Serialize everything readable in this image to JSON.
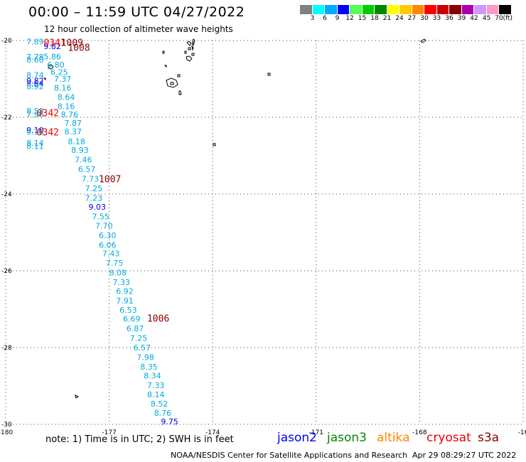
{
  "title": "00:00 – 11:59 UTC 04/27/2022",
  "subtitle": "12 hour collection of altimeter wave heights",
  "scale": {
    "unit": "(ft)",
    "bins": [
      {
        "color": "#808080",
        "label": "3"
      },
      {
        "color": "#00ffff",
        "label": "6"
      },
      {
        "color": "#00aaff",
        "label": "9"
      },
      {
        "color": "#0000ff",
        "label": "12"
      },
      {
        "color": "#55ff55",
        "label": "15"
      },
      {
        "color": "#00cc00",
        "label": "18"
      },
      {
        "color": "#008800",
        "label": "21"
      },
      {
        "color": "#ffff00",
        "label": "24"
      },
      {
        "color": "#ffcc00",
        "label": "27"
      },
      {
        "color": "#ff8800",
        "label": "30"
      },
      {
        "color": "#ff0000",
        "label": "33"
      },
      {
        "color": "#cc0000",
        "label": "36"
      },
      {
        "color": "#880000",
        "label": "39"
      },
      {
        "color": "#aa00aa",
        "label": "42"
      },
      {
        "color": "#cc99ff",
        "label": "45"
      },
      {
        "color": "#ff99cc",
        "label": "70"
      },
      {
        "color": "#000000",
        "label": ""
      }
    ]
  },
  "axes": {
    "lon_labels": [
      "-180",
      "-177",
      "-174",
      "-171",
      "-168",
      "-16"
    ],
    "lat_labels": [
      "-20",
      "-22",
      "-24",
      "-26",
      "-28",
      "-30"
    ]
  },
  "colors": {
    "wave": "#00aadd",
    "jason2": "#0000ee",
    "jason3": "#008800",
    "altika": "#ff8800",
    "cryosat": "#ee0000",
    "s3a": "#880000"
  },
  "track_points": [
    {
      "t": "7.89",
      "lon": -179.4,
      "lat": -20.03,
      "c": "wave"
    },
    {
      "t": "9.82",
      "lon": -178.9,
      "lat": -20.15,
      "c": "jason2"
    },
    {
      "t": "7.78",
      "lon": -179.4,
      "lat": -20.43,
      "c": "wave"
    },
    {
      "t": "8.60",
      "lon": -179.4,
      "lat": -20.5,
      "c": "wave"
    },
    {
      "t": "5.86",
      "lon": -178.9,
      "lat": -20.42,
      "c": "wave"
    },
    {
      "t": "6.80",
      "lon": -178.8,
      "lat": -20.63,
      "c": "wave"
    },
    {
      "t": "6.25",
      "lon": -178.7,
      "lat": -20.82,
      "c": "wave"
    },
    {
      "t": "8.74",
      "lon": -179.4,
      "lat": -20.9,
      "c": "wave"
    },
    {
      "t": "7.37",
      "lon": -178.6,
      "lat": -21.0,
      "c": "wave"
    },
    {
      "t": "9.82",
      "lon": -179.4,
      "lat": -21.05,
      "c": "jason2"
    },
    {
      "t": "8.64",
      "lon": -179.4,
      "lat": -21.12,
      "c": "jason2"
    },
    {
      "t": "8.92",
      "lon": -179.4,
      "lat": -21.19,
      "c": "wave"
    },
    {
      "t": "8.16",
      "lon": -178.6,
      "lat": -21.23,
      "c": "wave"
    },
    {
      "t": "8.64",
      "lon": -178.5,
      "lat": -21.47,
      "c": "wave"
    },
    {
      "t": "8.16",
      "lon": -178.5,
      "lat": -21.71,
      "c": "wave"
    },
    {
      "t": "8.58",
      "lon": -179.4,
      "lat": -21.83,
      "c": "wave"
    },
    {
      "t": "7.96",
      "lon": -179.4,
      "lat": -21.93,
      "c": "wave"
    },
    {
      "t": "8.76",
      "lon": -178.4,
      "lat": -21.93,
      "c": "wave"
    },
    {
      "t": "7.87",
      "lon": -178.3,
      "lat": -22.15,
      "c": "wave"
    },
    {
      "t": "9.10",
      "lon": -179.4,
      "lat": -22.33,
      "c": "jason2"
    },
    {
      "t": "9.16",
      "lon": -179.4,
      "lat": -22.38,
      "c": "wave"
    },
    {
      "t": "8.37",
      "lon": -178.3,
      "lat": -22.37,
      "c": "wave"
    },
    {
      "t": "8.18",
      "lon": -178.2,
      "lat": -22.63,
      "c": "wave"
    },
    {
      "t": "8.14",
      "lon": -179.4,
      "lat": -22.67,
      "c": "wave"
    },
    {
      "t": "8.11",
      "lon": -179.4,
      "lat": -22.75,
      "c": "wave"
    },
    {
      "t": "8.93",
      "lon": -178.1,
      "lat": -22.85,
      "c": "wave"
    },
    {
      "t": "7.46",
      "lon": -178.0,
      "lat": -23.1,
      "c": "wave"
    },
    {
      "t": "6.57",
      "lon": -177.9,
      "lat": -23.35,
      "c": "wave"
    },
    {
      "t": "7.73",
      "lon": -177.8,
      "lat": -23.6,
      "c": "wave"
    },
    {
      "t": "7.25",
      "lon": -177.7,
      "lat": -23.85,
      "c": "wave"
    },
    {
      "t": "7.23",
      "lon": -177.7,
      "lat": -24.1,
      "c": "wave"
    },
    {
      "t": "9.03",
      "lon": -177.6,
      "lat": -24.33,
      "c": "jason2"
    },
    {
      "t": "7.55",
      "lon": -177.5,
      "lat": -24.58,
      "c": "wave"
    },
    {
      "t": "7.70",
      "lon": -177.4,
      "lat": -24.82,
      "c": "wave"
    },
    {
      "t": "6.30",
      "lon": -177.3,
      "lat": -25.07,
      "c": "wave"
    },
    {
      "t": "6.06",
      "lon": -177.3,
      "lat": -25.32,
      "c": "wave"
    },
    {
      "t": "7.43",
      "lon": -177.2,
      "lat": -25.55,
      "c": "wave"
    },
    {
      "t": "7.75",
      "lon": -177.1,
      "lat": -25.8,
      "c": "wave"
    },
    {
      "t": "8.08",
      "lon": -177.0,
      "lat": -26.05,
      "c": "wave"
    },
    {
      "t": "7.33",
      "lon": -176.9,
      "lat": -26.3,
      "c": "wave"
    },
    {
      "t": "6.92",
      "lon": -176.8,
      "lat": -26.53,
      "c": "wave"
    },
    {
      "t": "7.91",
      "lon": -176.8,
      "lat": -26.78,
      "c": "wave"
    },
    {
      "t": "6.53",
      "lon": -176.7,
      "lat": -27.02,
      "c": "wave"
    },
    {
      "t": "6.69",
      "lon": -176.6,
      "lat": -27.25,
      "c": "wave"
    },
    {
      "t": "6.87",
      "lon": -176.5,
      "lat": -27.5,
      "c": "wave"
    },
    {
      "t": "7.25",
      "lon": -176.4,
      "lat": -27.75,
      "c": "wave"
    },
    {
      "t": "6.57",
      "lon": -176.3,
      "lat": -28.0,
      "c": "wave"
    },
    {
      "t": "7.98",
      "lon": -176.2,
      "lat": -28.25,
      "c": "wave"
    },
    {
      "t": "8.35",
      "lon": -176.1,
      "lat": -28.5,
      "c": "wave"
    },
    {
      "t": "8.34",
      "lon": -176.0,
      "lat": -28.73,
      "c": "wave"
    },
    {
      "t": "7.33",
      "lon": -175.9,
      "lat": -28.98,
      "c": "wave"
    },
    {
      "t": "8.14",
      "lon": -175.9,
      "lat": -29.22,
      "c": "wave"
    },
    {
      "t": "8.52",
      "lon": -175.8,
      "lat": -29.46,
      "c": "wave"
    },
    {
      "t": "8.76",
      "lon": -175.7,
      "lat": -29.7,
      "c": "wave"
    },
    {
      "t": "9.75",
      "lon": -175.5,
      "lat": -29.93,
      "c": "jason2"
    }
  ],
  "time_labels": [
    {
      "t": "0341",
      "lon": -178.9,
      "lat": -20.05,
      "c": "cryosat"
    },
    {
      "t": "1009",
      "lon": -178.4,
      "lat": -20.05,
      "c": "s3a"
    },
    {
      "t": "1008",
      "lon": -178.2,
      "lat": -20.18,
      "c": "s3a"
    },
    {
      "t": "0342",
      "lon": -179.1,
      "lat": -21.88,
      "c": "cryosat"
    },
    {
      "t": "0342",
      "lon": -179.1,
      "lat": -22.38,
      "c": "cryosat"
    },
    {
      "t": "1007",
      "lon": -177.3,
      "lat": -23.6,
      "c": "s3a"
    },
    {
      "t": "1006",
      "lon": -175.9,
      "lat": -27.23,
      "c": "s3a"
    }
  ],
  "note": "note:  1) Time is in UTC; 2) SWH is in feet",
  "satellites": [
    {
      "name": "jason2",
      "c": "jason2"
    },
    {
      "name": "jason3",
      "c": "jason3"
    },
    {
      "name": "altika",
      "c": "altika"
    },
    {
      "name": "cryosat",
      "c": "cryosat"
    },
    {
      "name": "s3a",
      "c": "s3a"
    }
  ],
  "credit": "NOAA/NESDIS Center for Satellite Applications and Research",
  "timestamp": "Apr 29 08:29:27 UTC 2022"
}
